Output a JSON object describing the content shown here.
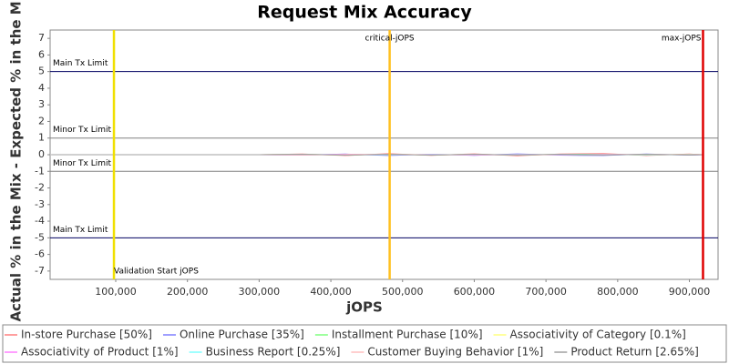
{
  "chart_data": {
    "type": "line",
    "title": "Request Mix Accuracy",
    "x_label": "jOPS",
    "y_label": "Actual % in the Mix - Expected % in the Mix",
    "xlim": [
      8500,
      940000
    ],
    "ylim": [
      -7.5,
      7.5
    ],
    "xticks": [
      {
        "value": 100000,
        "label": "100,000"
      },
      {
        "value": 200000,
        "label": "200,000"
      },
      {
        "value": 300000,
        "label": "300,000"
      },
      {
        "value": 400000,
        "label": "400,000"
      },
      {
        "value": 500000,
        "label": "500,000"
      },
      {
        "value": 600000,
        "label": "600,000"
      },
      {
        "value": 700000,
        "label": "700,000"
      },
      {
        "value": 800000,
        "label": "800,000"
      },
      {
        "value": 900000,
        "label": "900,000"
      }
    ],
    "yticks": [
      -7,
      -6,
      -5,
      -4,
      -3,
      -2,
      -1,
      0,
      1,
      2,
      3,
      4,
      5,
      6,
      7
    ],
    "x": [
      10000,
      300000,
      360000,
      420000,
      480000,
      540000,
      600000,
      660000,
      720000,
      780000,
      840000,
      900000,
      920000
    ],
    "series": [
      {
        "name": "In-store Purchase [50%]",
        "color": "#ff7f7f",
        "values": [
          0,
          0,
          0.04,
          -0.05,
          0.06,
          -0.04,
          0.05,
          -0.06,
          0.04,
          0.07,
          -0.05,
          0.04,
          0
        ]
      },
      {
        "name": "Online Purchase [35%]",
        "color": "#7f7fff",
        "values": [
          0,
          0,
          -0.03,
          0.04,
          -0.05,
          0.03,
          -0.04,
          0.05,
          -0.03,
          -0.05,
          0.04,
          -0.03,
          0
        ]
      },
      {
        "name": "Installment Purchase [10%]",
        "color": "#7fff7f",
        "values": [
          0,
          0,
          0.02,
          -0.02,
          0.03,
          -0.02,
          0.02,
          -0.03,
          0.02,
          0.03,
          -0.02,
          0.02,
          0
        ]
      },
      {
        "name": "Associativity of Category [0.1%]",
        "color": "#ffff7f",
        "values": [
          0,
          0,
          0.01,
          -0.01,
          0.01,
          0,
          -0.01,
          0.01,
          0,
          -0.01,
          0.01,
          0,
          0
        ]
      },
      {
        "name": "Associativity of Product [1%]",
        "color": "#ff7fff",
        "values": [
          0,
          0,
          -0.01,
          0.02,
          -0.01,
          0.01,
          -0.02,
          0.01,
          -0.01,
          0.02,
          -0.01,
          0.01,
          0
        ]
      },
      {
        "name": "Business Report [0.25%]",
        "color": "#7fffff",
        "values": [
          0,
          0,
          0.01,
          0,
          -0.01,
          0.01,
          0,
          -0.01,
          0.01,
          0,
          -0.01,
          0,
          0
        ]
      },
      {
        "name": "Customer Buying Behavior [1%]",
        "color": "#ffbfbf",
        "values": [
          0,
          0,
          -0.02,
          0.01,
          0.02,
          -0.01,
          0.01,
          -0.02,
          0.01,
          -0.01,
          0.02,
          -0.01,
          0
        ]
      },
      {
        "name": "Product Return [2.65%]",
        "color": "#a0a0a0",
        "values": [
          0,
          0,
          0.03,
          -0.03,
          0.02,
          -0.03,
          0.03,
          -0.02,
          0.03,
          -0.02,
          0.03,
          -0.02,
          0
        ]
      }
    ],
    "limits": [
      {
        "label": "Main Tx Limit",
        "value": 5,
        "color": "#000060"
      },
      {
        "label": "Minor Tx Limit",
        "value": 1,
        "color": "#808080"
      },
      {
        "label": "Minor Tx Limit",
        "value": -1,
        "color": "#808080"
      },
      {
        "label": "Main Tx Limit",
        "value": -5,
        "color": "#000060"
      }
    ],
    "markers": [
      {
        "label": "Validation Start jOPS",
        "value": 97500,
        "color": "#f0e000"
      },
      {
        "label": "critical-jOPS",
        "value": 482000,
        "color": "#ffc020"
      },
      {
        "label": "max-jOPS",
        "value": 919000,
        "color": "#e00000"
      }
    ]
  }
}
